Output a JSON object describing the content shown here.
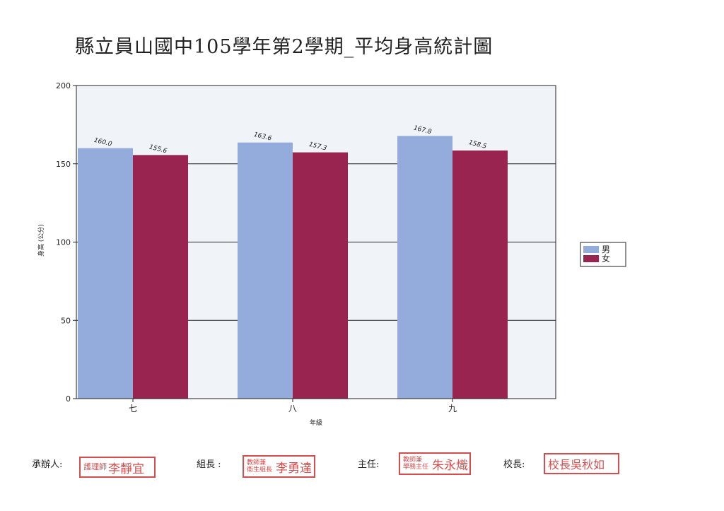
{
  "page": {
    "title": "縣立員山國中105學年第2學期_平均身高統計圖"
  },
  "chart_data": {
    "type": "bar",
    "title": "縣立員山國中105學年第2學期_平均身高統計圖",
    "xlabel": "年級",
    "ylabel": "身高 (公分)",
    "categories": [
      "七",
      "八",
      "九"
    ],
    "series": [
      {
        "name": "男",
        "values": [
          160.0,
          163.6,
          167.8
        ],
        "labels": [
          "160.0",
          "163.6",
          "167.8"
        ],
        "color": "#94acdc"
      },
      {
        "name": "女",
        "values": [
          155.6,
          157.3,
          158.5
        ],
        "labels": [
          "155.6",
          "157.3",
          "158.5"
        ],
        "color": "#9a2450"
      }
    ],
    "ylim": [
      0,
      200
    ],
    "yticks": [
      "0",
      "50",
      "100",
      "150",
      "200"
    ],
    "grid": true,
    "legend": "right"
  },
  "footer": {
    "undertaker_label": "承辦人:",
    "undertaker_stamp_title": "護理師",
    "undertaker_stamp_name": "李靜宜",
    "section_chief_label": "組長 :",
    "section_chief_stamp_title1": "教師兼",
    "section_chief_stamp_title2": "衛生組長",
    "section_chief_stamp_name": "李勇達",
    "director_label": "主任:",
    "director_stamp_title1": "教師兼",
    "director_stamp_title2": "學務主任",
    "director_stamp_name": "朱永熾",
    "principal_label": "校長:",
    "principal_stamp_text": "校長吳秋如"
  },
  "colors": {
    "male": "#94acdc",
    "female": "#9a2450",
    "plot_background": "#f0f3f8",
    "stamp_red": "#d23a3a"
  }
}
